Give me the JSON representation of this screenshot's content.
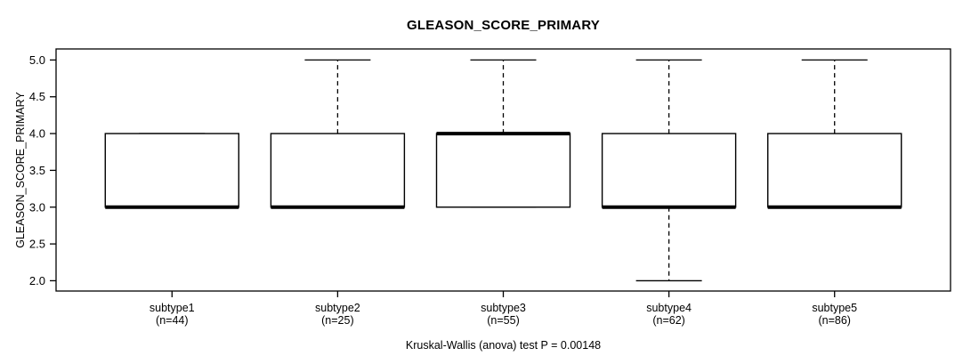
{
  "chart_data": {
    "type": "boxplot",
    "title": "GLEASON_SCORE_PRIMARY",
    "ylabel": "GLEASON_SCORE_PRIMARY",
    "xlabel": "",
    "annotation": "Kruskal-Wallis (anova) test P = 0.00148",
    "p_value": 0.00148,
    "y_ticks": [
      2.0,
      2.5,
      3.0,
      3.5,
      4.0,
      4.5,
      5.0
    ],
    "y_tick_labels": [
      "2.0",
      "2.5",
      "3.0",
      "3.5",
      "4.0",
      "4.5",
      "5.0"
    ],
    "ylim": [
      1.86,
      5.15
    ],
    "grid": false,
    "legend": null,
    "groups": [
      {
        "label": "subtype1",
        "sublabel": "(n=44)",
        "n": 44,
        "q1": 3.0,
        "median": 3.0,
        "q3": 4.0,
        "whisker_low": 3.0,
        "whisker_high": 4.0
      },
      {
        "label": "subtype2",
        "sublabel": "(n=25)",
        "n": 25,
        "q1": 3.0,
        "median": 3.0,
        "q3": 4.0,
        "whisker_low": 3.0,
        "whisker_high": 5.0
      },
      {
        "label": "subtype3",
        "sublabel": "(n=55)",
        "n": 55,
        "q1": 3.0,
        "median": 4.0,
        "q3": 4.0,
        "whisker_low": 3.0,
        "whisker_high": 5.0
      },
      {
        "label": "subtype4",
        "sublabel": "(n=62)",
        "n": 62,
        "q1": 3.0,
        "median": 3.0,
        "q3": 4.0,
        "whisker_low": 2.0,
        "whisker_high": 5.0
      },
      {
        "label": "subtype5",
        "sublabel": "(n=86)",
        "n": 86,
        "q1": 3.0,
        "median": 3.0,
        "q3": 4.0,
        "whisker_low": 3.0,
        "whisker_high": 5.0
      }
    ],
    "colors": {
      "box_fill": "#ffffff",
      "stroke": "#000000",
      "text": "#000000",
      "background": "#ffffff"
    }
  }
}
